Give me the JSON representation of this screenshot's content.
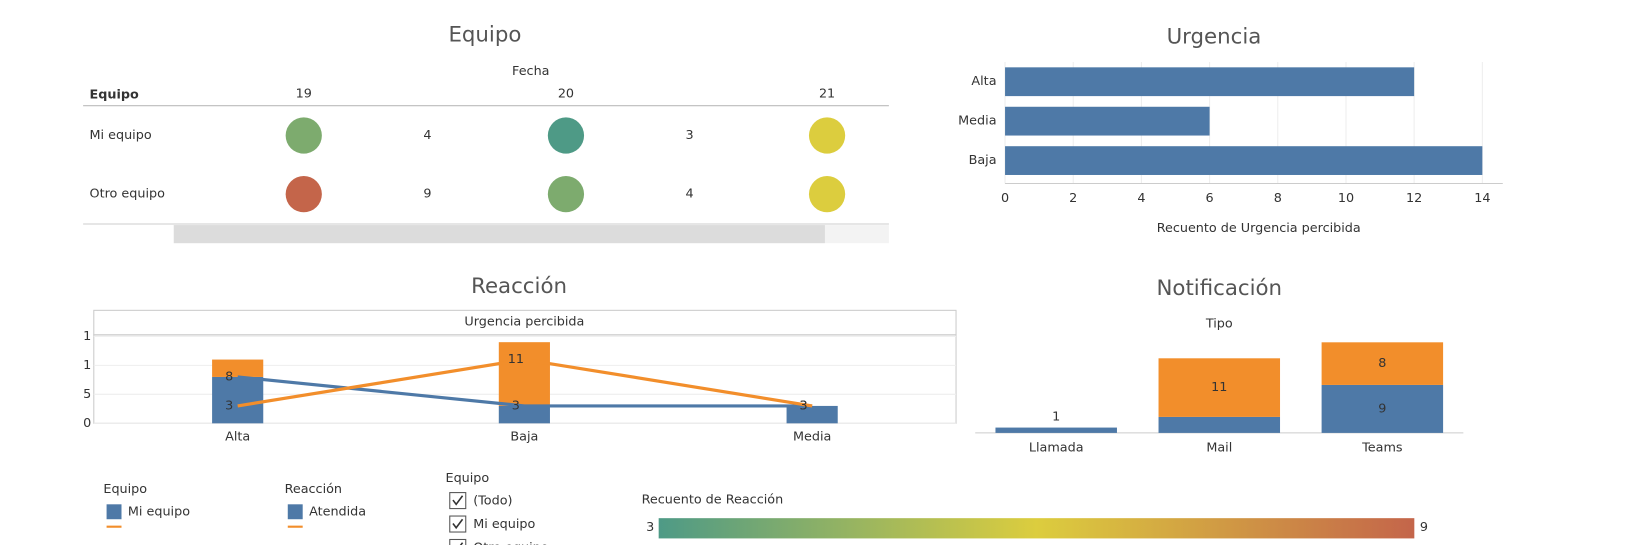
{
  "chart_data": [
    {
      "type": "circle-table",
      "title": "Equipo",
      "column_header": "Fecha",
      "row_header": "Equipo",
      "columns": [
        19,
        20,
        21
      ],
      "rows": [
        "Mi equipo",
        "Otro equipo"
      ],
      "values": [
        [
          4,
          3,
          6
        ],
        [
          9,
          4,
          6
        ]
      ],
      "value_labels": [
        [
          "4",
          "3",
          null
        ],
        [
          "9",
          "4",
          null
        ]
      ]
    },
    {
      "type": "hbar",
      "title": "Urgencia",
      "categories": [
        "Alta",
        "Media",
        "Baja"
      ],
      "values": [
        12,
        6,
        14
      ],
      "color": "#4e79a7",
      "xlim": [
        0,
        14.6
      ],
      "xticks": [
        0,
        2,
        4,
        6,
        8,
        10,
        12,
        14
      ],
      "xlabel": "Recuento de Urgencia percibida",
      "grid": true
    },
    {
      "type": "combo",
      "title": "Reacción",
      "header": "Urgencia percibida",
      "categories": [
        "Alta",
        "Baja",
        "Media"
      ],
      "bars": [
        {
          "name": "Atendida",
          "color": "#4e79a7",
          "values": [
            8,
            3,
            3
          ]
        },
        {
          "color": "#f28e2b",
          "values": [
            3,
            11,
            0
          ]
        }
      ],
      "lines": [
        {
          "name": "Mi equipo",
          "color": "#4e79a7",
          "values": [
            8,
            3,
            3
          ]
        },
        {
          "color": "#f28e2b",
          "values": [
            3,
            11,
            3
          ]
        }
      ],
      "ylim": [
        0,
        16
      ],
      "yticks": [
        0,
        5,
        {
          "value": 10,
          "label": "1"
        },
        {
          "value": 15,
          "label": "1"
        }
      ]
    },
    {
      "type": "stacked-bar",
      "title": "Notificación",
      "header": "Tipo",
      "categories": [
        "Llamada",
        "Mail",
        "Teams"
      ],
      "series": [
        {
          "color": "#4e79a7",
          "values": [
            1,
            3,
            9
          ],
          "value_labels": [
            "1",
            null,
            "9"
          ]
        },
        {
          "color": "#f28e2b",
          "values": [
            0,
            11,
            8
          ],
          "value_labels": [
            null,
            "11",
            "8"
          ]
        }
      ]
    }
  ],
  "legends": [
    {
      "title": "Equipo",
      "items": [
        {
          "label": "Mi equipo",
          "color": "#4e79a7"
        },
        {
          "color": "#f28e2b"
        }
      ]
    },
    {
      "title": "Reacción",
      "items": [
        {
          "label": "Atendida",
          "color": "#4e79a7"
        },
        {
          "color": "#f28e2b"
        }
      ]
    }
  ],
  "filter": {
    "title": "Equipo",
    "options": [
      "(Todo)",
      "Mi equipo",
      "Otro equipo"
    ]
  },
  "color_legend": {
    "title": "Recuento de Reacción",
    "min": 3,
    "max": 9,
    "colors": [
      "#4e9a86",
      "#dccd3e",
      "#c4654a"
    ]
  }
}
